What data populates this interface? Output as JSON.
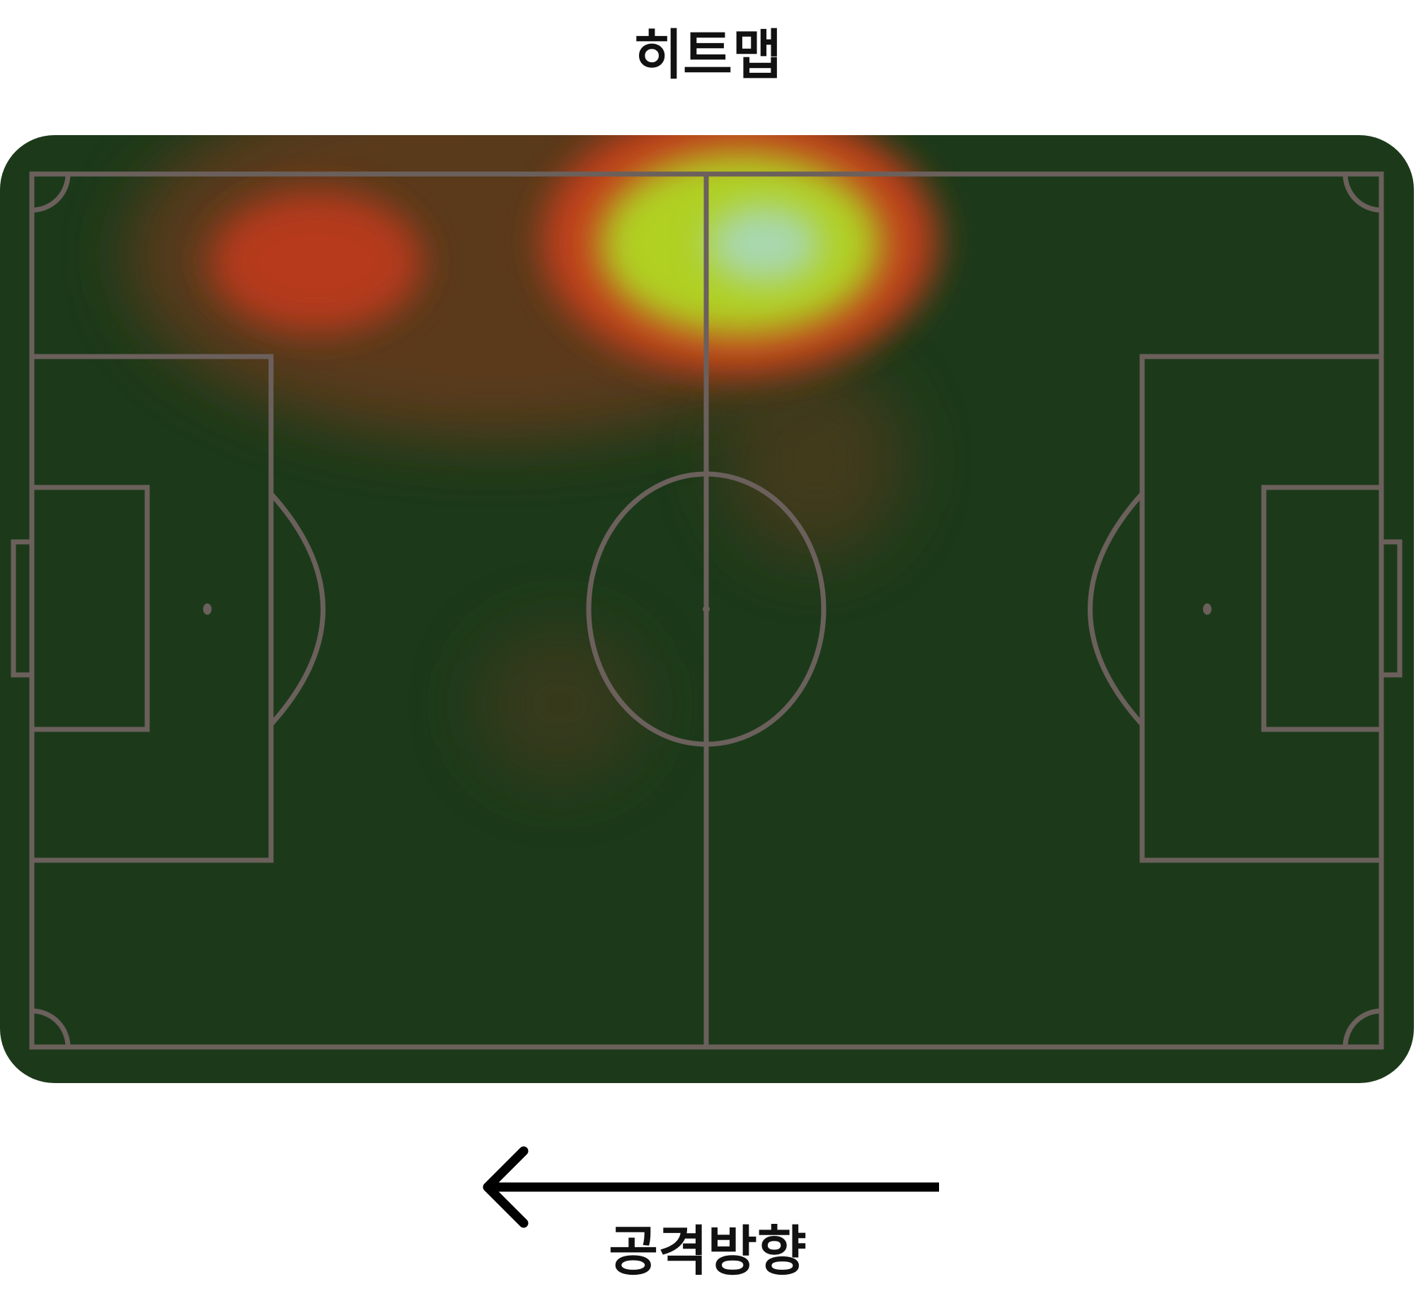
{
  "title": "히트맵",
  "direction_label": "공격방향"
}
